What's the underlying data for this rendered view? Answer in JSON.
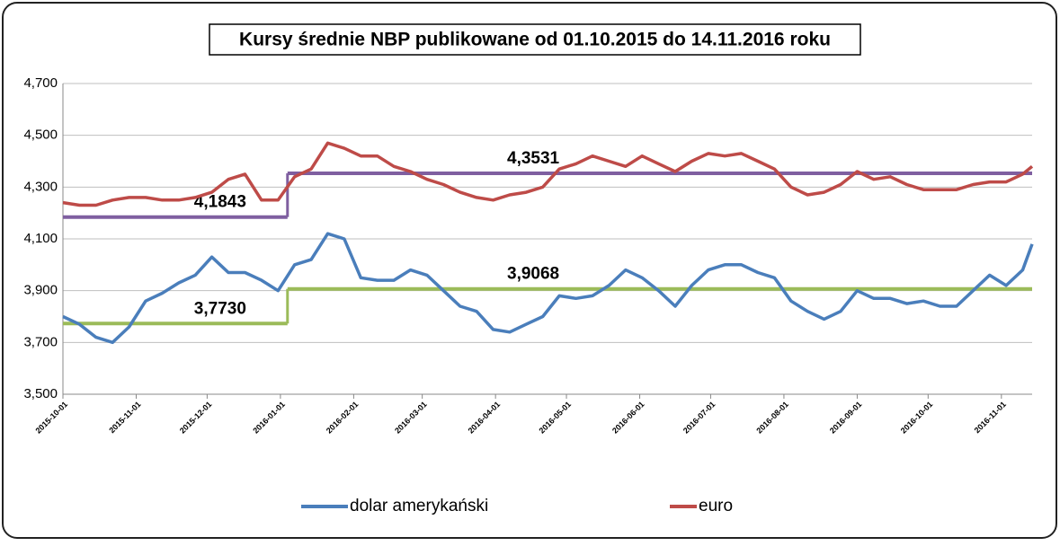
{
  "chart_data": {
    "type": "line",
    "title": "Kursy średnie NBP publikowane od 01.10.2015 do 14.11.2016 roku",
    "x": [
      "2015-10-01",
      "2015-10-08",
      "2015-10-15",
      "2015-10-22",
      "2015-10-29",
      "2015-11-05",
      "2015-11-12",
      "2015-11-19",
      "2015-11-26",
      "2015-12-03",
      "2015-12-10",
      "2015-12-17",
      "2015-12-24",
      "2015-12-31",
      "2016-01-07",
      "2016-01-14",
      "2016-01-21",
      "2016-01-28",
      "2016-02-04",
      "2016-02-11",
      "2016-02-18",
      "2016-02-25",
      "2016-03-03",
      "2016-03-10",
      "2016-03-17",
      "2016-03-24",
      "2016-03-31",
      "2016-04-07",
      "2016-04-14",
      "2016-04-21",
      "2016-04-28",
      "2016-05-05",
      "2016-05-12",
      "2016-05-19",
      "2016-05-26",
      "2016-06-02",
      "2016-06-09",
      "2016-06-16",
      "2016-06-23",
      "2016-06-30",
      "2016-07-07",
      "2016-07-14",
      "2016-07-21",
      "2016-07-28",
      "2016-08-04",
      "2016-08-11",
      "2016-08-18",
      "2016-08-25",
      "2016-09-01",
      "2016-09-08",
      "2016-09-15",
      "2016-09-22",
      "2016-09-29",
      "2016-10-06",
      "2016-10-13",
      "2016-10-20",
      "2016-10-27",
      "2016-11-03",
      "2016-11-10",
      "2016-11-14"
    ],
    "series": [
      {
        "name": "dolar amerykański",
        "color": "#4a7ebb",
        "values": [
          3.8,
          3.77,
          3.72,
          3.7,
          3.76,
          3.86,
          3.89,
          3.93,
          3.96,
          4.03,
          3.97,
          3.97,
          3.94,
          3.9,
          4.0,
          4.02,
          4.12,
          4.1,
          3.95,
          3.94,
          3.94,
          3.98,
          3.96,
          3.9,
          3.84,
          3.82,
          3.75,
          3.74,
          3.77,
          3.8,
          3.88,
          3.87,
          3.88,
          3.92,
          3.98,
          3.95,
          3.9,
          3.84,
          3.92,
          3.98,
          4.0,
          4.0,
          3.97,
          3.95,
          3.86,
          3.82,
          3.79,
          3.82,
          3.9,
          3.87,
          3.87,
          3.85,
          3.86,
          3.84,
          3.84,
          3.9,
          3.96,
          3.92,
          3.98,
          4.08
        ]
      },
      {
        "name": "euro",
        "color": "#be4b48",
        "values": [
          4.24,
          4.23,
          4.23,
          4.25,
          4.26,
          4.26,
          4.25,
          4.25,
          4.26,
          4.28,
          4.33,
          4.35,
          4.25,
          4.25,
          4.34,
          4.37,
          4.47,
          4.45,
          4.42,
          4.42,
          4.38,
          4.36,
          4.33,
          4.31,
          4.28,
          4.26,
          4.25,
          4.27,
          4.28,
          4.3,
          4.37,
          4.39,
          4.42,
          4.4,
          4.38,
          4.42,
          4.39,
          4.36,
          4.4,
          4.43,
          4.42,
          4.43,
          4.4,
          4.37,
          4.3,
          4.27,
          4.28,
          4.31,
          4.36,
          4.33,
          4.34,
          4.31,
          4.29,
          4.29,
          4.29,
          4.31,
          4.32,
          4.32,
          4.35,
          4.38
        ]
      }
    ],
    "averages": [
      {
        "color": "#7f5fa0",
        "segments": [
          {
            "start": "2015-10-01",
            "end": "2016-01-04",
            "value": 4.1843,
            "label": "4,1843"
          },
          {
            "start": "2016-01-04",
            "end": "2016-11-14",
            "value": 4.3531,
            "label": "4,3531"
          }
        ]
      },
      {
        "color": "#9bbb59",
        "segments": [
          {
            "start": "2015-10-01",
            "end": "2016-01-04",
            "value": 3.773,
            "label": "3,7730"
          },
          {
            "start": "2016-01-04",
            "end": "2016-11-14",
            "value": 3.9068,
            "label": "3,9068"
          }
        ]
      }
    ],
    "xlim": [
      "2015-10-01",
      "2016-11-14"
    ],
    "xticks": [
      "2015-10-01",
      "2015-11-01",
      "2015-12-01",
      "2016-01-01",
      "2016-02-01",
      "2016-03-01",
      "2016-04-01",
      "2016-05-01",
      "2016-06-01",
      "2016-07-01",
      "2016-08-01",
      "2016-09-01",
      "2016-10-01",
      "2016-11-01"
    ],
    "ylim": [
      3.5,
      4.7
    ],
    "yticks": [
      {
        "value": 3.5,
        "label": "3,500"
      },
      {
        "value": 3.7,
        "label": "3,700"
      },
      {
        "value": 3.9,
        "label": "3,900"
      },
      {
        "value": 4.1,
        "label": "4,100"
      },
      {
        "value": 4.3,
        "label": "4,300"
      },
      {
        "value": 4.5,
        "label": "4,500"
      },
      {
        "value": 4.7,
        "label": "4,700"
      }
    ],
    "grid": true,
    "legend": "bottom"
  }
}
